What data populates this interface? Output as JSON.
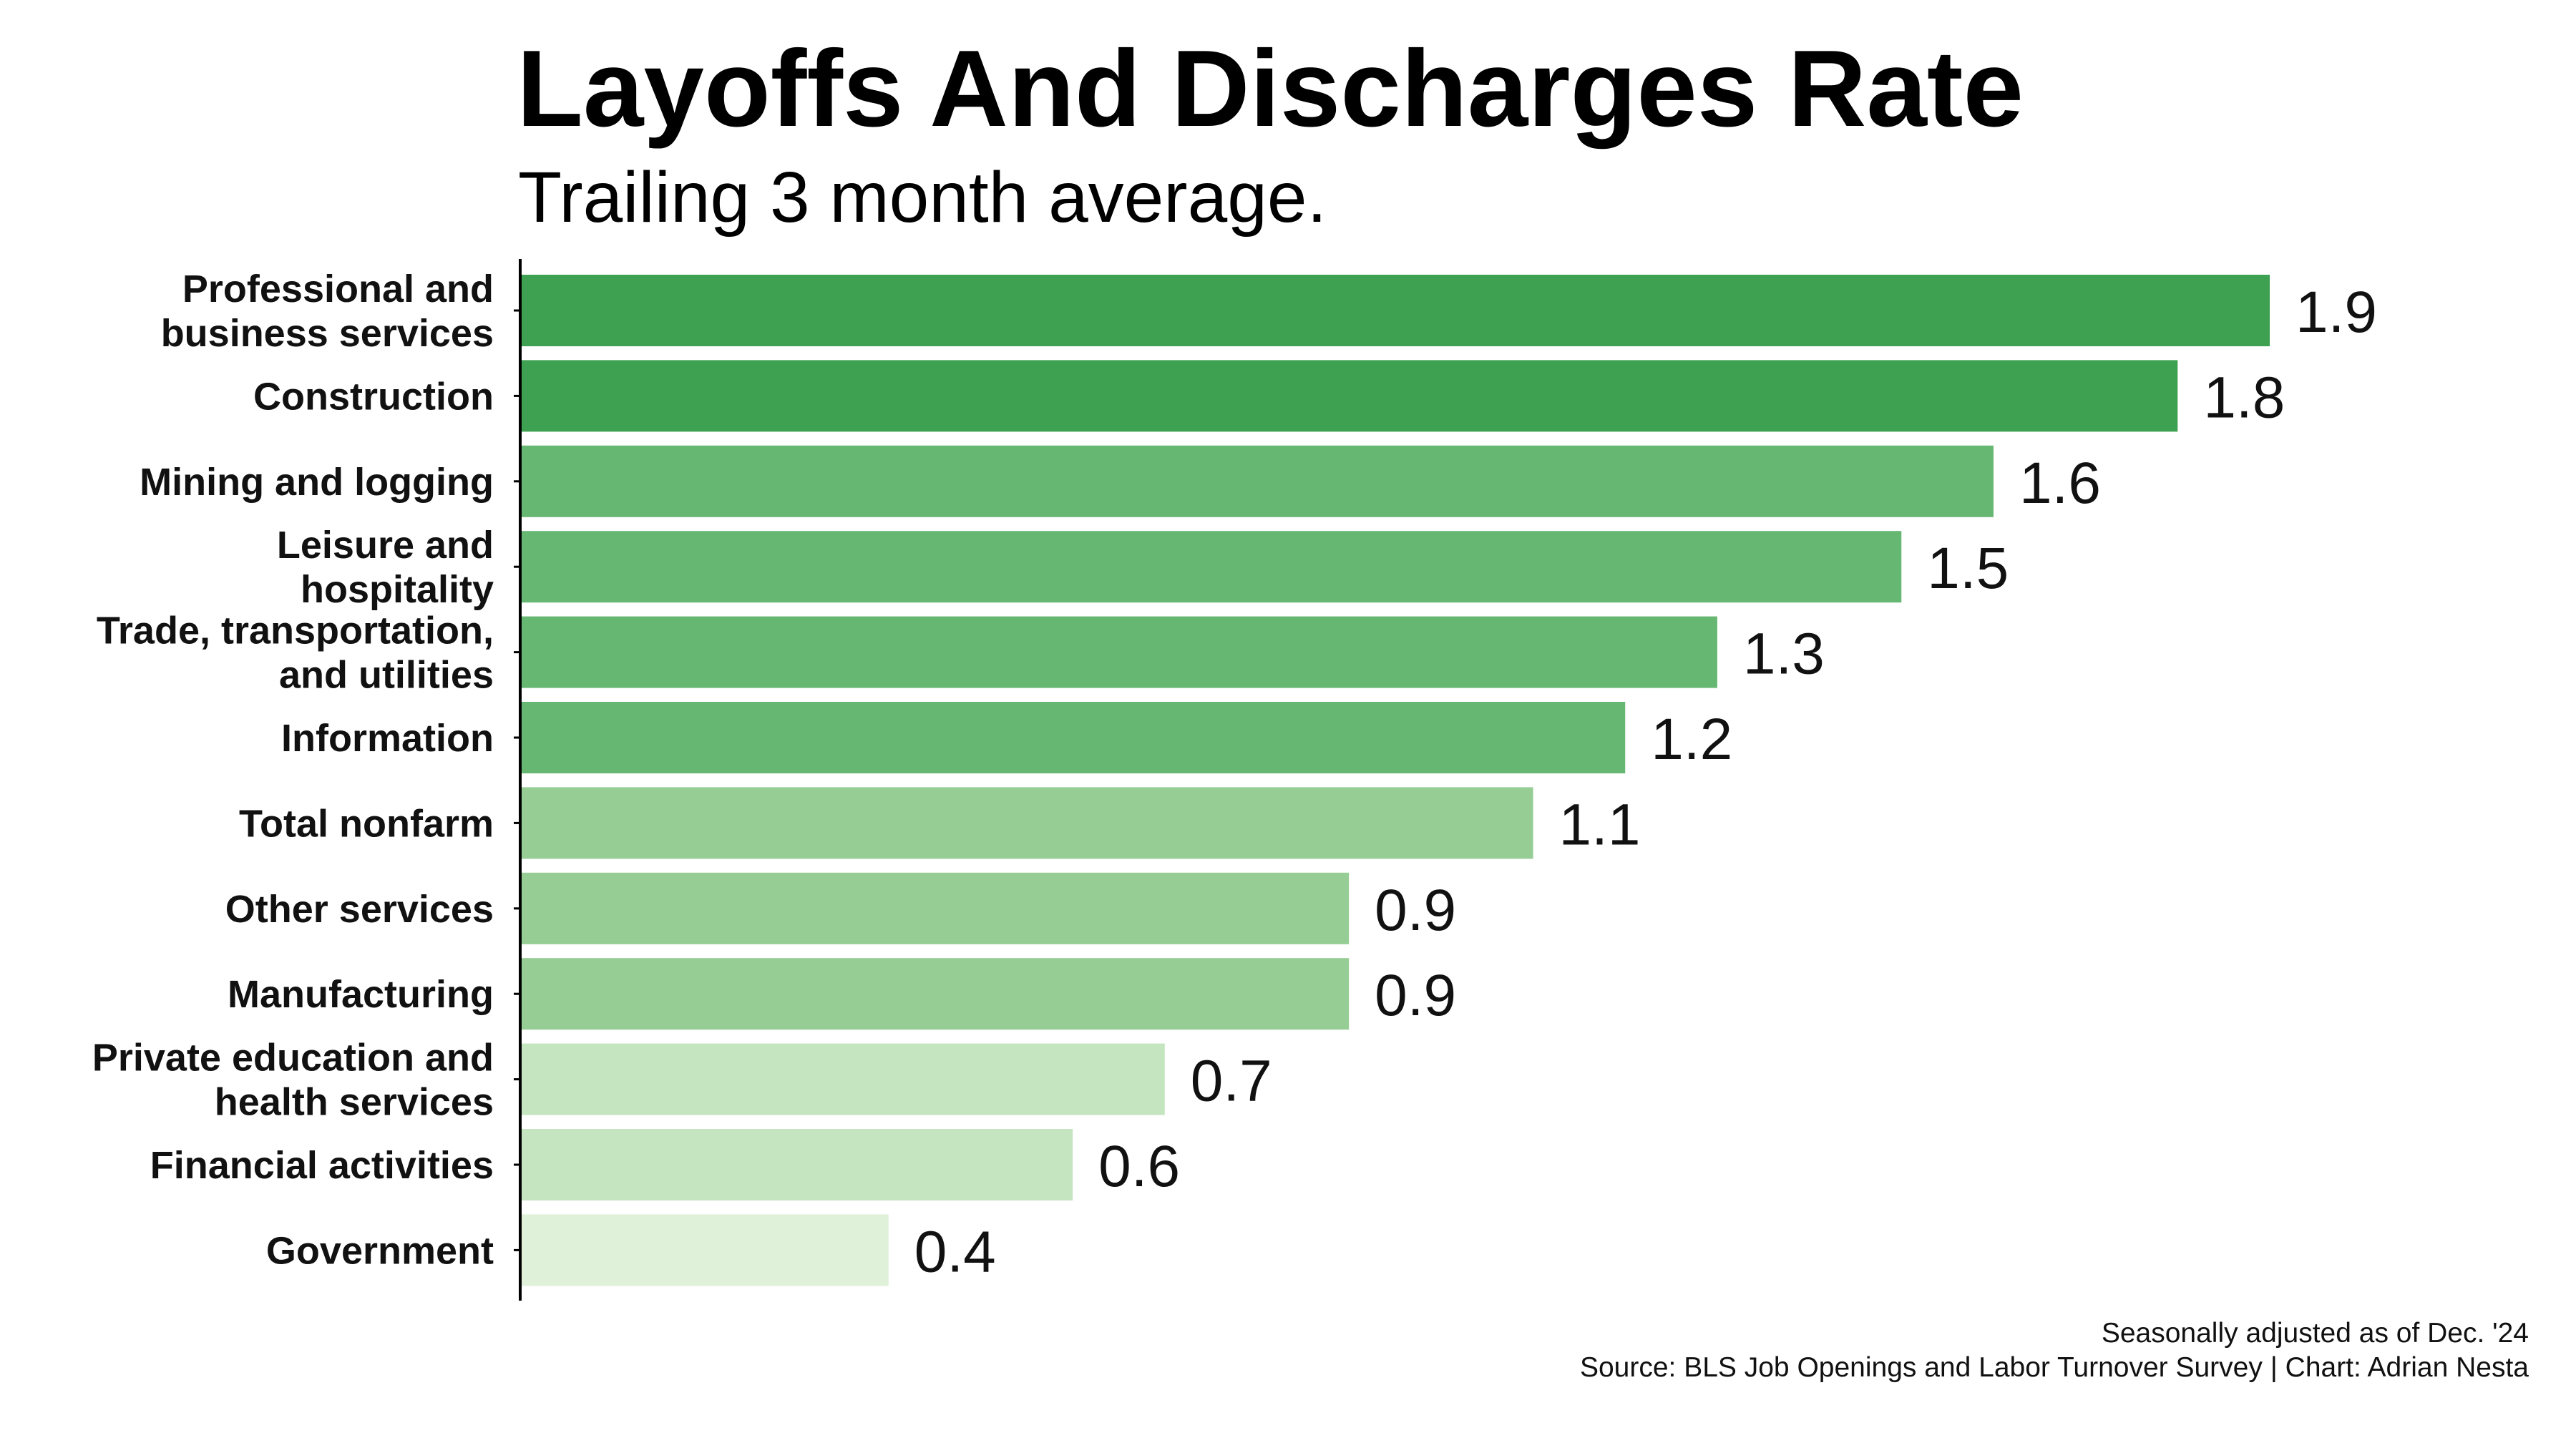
{
  "chart_data": {
    "type": "bar",
    "orientation": "horizontal",
    "title": "Layoffs And Discharges Rate",
    "subtitle": "Trailing 3 month average.",
    "categories": [
      [
        "Professional and",
        "business services"
      ],
      [
        "Construction"
      ],
      [
        "Mining and logging"
      ],
      [
        "Leisure and",
        "hospitality"
      ],
      [
        "Trade, transportation,",
        "and utilities"
      ],
      [
        "Information"
      ],
      [
        "Total nonfarm"
      ],
      [
        "Other services"
      ],
      [
        "Manufacturing"
      ],
      [
        "Private education and",
        "health services"
      ],
      [
        "Financial activities"
      ],
      [
        "Government"
      ]
    ],
    "values": [
      1.9,
      1.8,
      1.6,
      1.5,
      1.3,
      1.2,
      1.1,
      0.9,
      0.9,
      0.7,
      0.6,
      0.4
    ],
    "value_labels": [
      "1.9",
      "1.8",
      "1.6",
      "1.5",
      "1.3",
      "1.2",
      "1.1",
      "0.9",
      "0.9",
      "0.7",
      "0.6",
      "0.4"
    ],
    "colors": [
      "#3ea151",
      "#3ea151",
      "#66b772",
      "#66b772",
      "#66b772",
      "#66b772",
      "#96cd94",
      "#96cd94",
      "#96cd94",
      "#c5e5c0",
      "#c5e5c0",
      "#dff1d9"
    ],
    "xlim": [
      0,
      1.9
    ],
    "grid": false,
    "legend": "none"
  },
  "footnote": {
    "line1": "Seasonally adjusted as of Dec. '24",
    "line2": "Source: BLS Job Openings and Labor Turnover Survey | Chart: Adrian Nesta"
  }
}
